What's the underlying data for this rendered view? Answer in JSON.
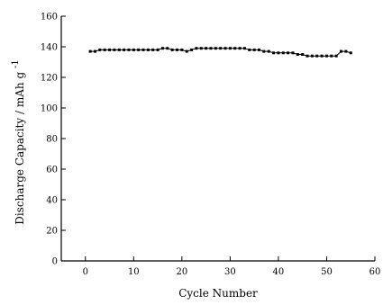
{
  "chart_data": {
    "type": "line",
    "title": "",
    "xlabel": "Cycle Number",
    "ylabel": "Discharge Capacity / mAh g",
    "ylabel_superscript": "-1",
    "xlim": [
      -5,
      60
    ],
    "ylim": [
      0,
      160
    ],
    "xticks": [
      0,
      10,
      20,
      30,
      40,
      50,
      60
    ],
    "yticks": [
      0,
      20,
      40,
      60,
      80,
      100,
      120,
      140,
      160
    ],
    "grid": false,
    "legend": "none",
    "marker": "square",
    "color": "#000000",
    "series": [
      {
        "x": [
          1,
          2,
          3,
          4,
          5,
          6,
          7,
          8,
          9,
          10,
          11,
          12,
          13,
          14,
          15,
          16,
          17,
          18,
          19,
          20,
          21,
          22,
          23,
          24,
          25,
          26,
          27,
          28,
          29,
          30,
          31,
          32,
          33,
          34,
          35,
          36,
          37,
          38,
          39,
          40,
          41,
          42,
          43,
          44,
          45,
          46,
          47,
          48,
          49,
          50,
          51,
          52,
          53,
          54,
          55
        ],
        "values": [
          137,
          137,
          138,
          138,
          138,
          138,
          138,
          138,
          138,
          138,
          138,
          138,
          138,
          138,
          138,
          139,
          139,
          138,
          138,
          138,
          137,
          138,
          139,
          139,
          139,
          139,
          139,
          139,
          139,
          139,
          139,
          139,
          139,
          138,
          138,
          138,
          137,
          137,
          136,
          136,
          136,
          136,
          136,
          135,
          135,
          134,
          134,
          134,
          134,
          134,
          134,
          134,
          137,
          137,
          136
        ]
      }
    ]
  }
}
